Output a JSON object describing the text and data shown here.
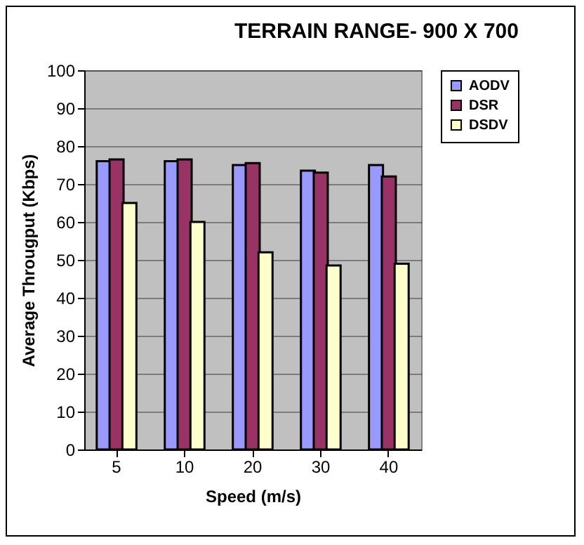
{
  "chart_data": {
    "type": "bar",
    "title": "TERRAIN RANGE- 900 X 700",
    "xlabel": "Speed (m/s)",
    "ylabel": "Average Througput (Kbps)",
    "categories": [
      "5",
      "10",
      "20",
      "30",
      "40"
    ],
    "series": [
      {
        "name": "AODV",
        "color": "#9999ff",
        "values": [
          76,
          76,
          75,
          73.5,
          75
        ]
      },
      {
        "name": "DSR",
        "color": "#993366",
        "values": [
          76.5,
          76.5,
          75.5,
          73,
          72
        ]
      },
      {
        "name": "DSDV",
        "color": "#ffffcc",
        "values": [
          65,
          60,
          52,
          48.5,
          49
        ]
      }
    ],
    "ylim": [
      0,
      100
    ],
    "yticks": [
      0,
      10,
      20,
      30,
      40,
      50,
      60,
      70,
      80,
      90,
      100
    ],
    "grid": "y",
    "legend": "right"
  }
}
